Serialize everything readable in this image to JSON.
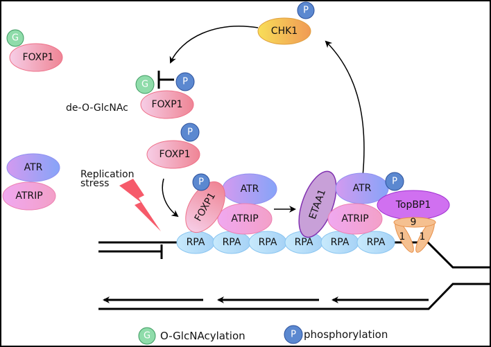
{
  "labels": {
    "foxp1": "FOXP1",
    "chk1": "CHK1",
    "atr": "ATR",
    "atrip": "ATRIP",
    "etaa1": "ETAA1",
    "topbp1": "TopBP1",
    "rpa": "RPA",
    "nine": "9",
    "one": "1",
    "g": "G",
    "p": "P",
    "de_o_glcnac": "de-O-GlcNAc",
    "replication": "Replication",
    "stress": "stress"
  },
  "legend": {
    "glcnac_symbol": "G",
    "glcnac_label": "O-GlcNAcylation",
    "phospho_symbol": "P",
    "phospho_label": "phosphorylation"
  },
  "colors": {
    "glcnac": "#8fdcaa",
    "phospho": "#5b88d0",
    "foxp1": "#f08a9a",
    "atr": "#9aa0f8",
    "atrip": "#f0a0e8",
    "rpa": "#b8e0fa",
    "etaa1": "#c8a0d8",
    "topbp1": "#d070f0",
    "nine_one_one": "#f5c090",
    "lightning": "#f65a6a"
  }
}
